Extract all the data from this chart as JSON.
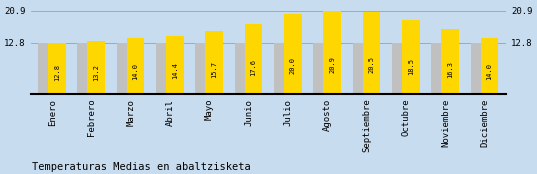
{
  "months": [
    "Enero",
    "Febrero",
    "Marzo",
    "Abril",
    "Mayo",
    "Junio",
    "Julio",
    "Agosto",
    "Septiembre",
    "Octubre",
    "Noviembre",
    "Diciembre"
  ],
  "values": [
    12.8,
    13.2,
    14.0,
    14.4,
    15.7,
    17.6,
    20.0,
    20.9,
    20.5,
    18.5,
    16.3,
    14.0
  ],
  "gray_values": [
    12.8,
    12.8,
    12.8,
    12.8,
    12.8,
    12.8,
    12.8,
    12.8,
    12.8,
    12.8,
    12.8,
    12.8
  ],
  "yellow_color": "#FFD700",
  "gray_color": "#C0C0C0",
  "bg_color": "#C8DCF0",
  "grid_color": "#A0A0A0",
  "title": "Temperaturas Medias en abaltzisketa",
  "yticks": [
    12.8,
    20.9
  ],
  "ymin": 0.0,
  "ymax": 22.5,
  "bar_value_fontsize": 5.0,
  "title_fontsize": 7.5,
  "tick_label_fontsize": 6.5
}
